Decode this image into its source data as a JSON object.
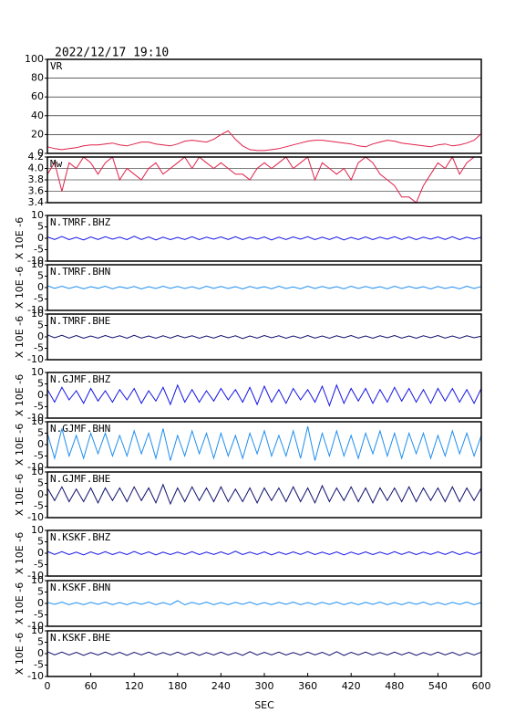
{
  "chart_data": {
    "title": "2022/12/17  19:10",
    "xlabel": "SEC",
    "xlim": [
      0,
      600
    ],
    "xticks": [
      0,
      60,
      120,
      180,
      240,
      300,
      360,
      420,
      480,
      540,
      600
    ],
    "x": [
      0,
      10,
      20,
      30,
      40,
      50,
      60,
      70,
      80,
      90,
      100,
      110,
      120,
      130,
      140,
      150,
      160,
      170,
      180,
      190,
      200,
      210,
      220,
      230,
      240,
      250,
      260,
      270,
      280,
      290,
      300,
      310,
      320,
      330,
      340,
      350,
      360,
      370,
      380,
      390,
      400,
      410,
      420,
      430,
      440,
      450,
      460,
      470,
      480,
      490,
      500,
      510,
      520,
      530,
      540,
      550,
      560,
      570,
      580,
      590,
      600
    ],
    "panels": [
      {
        "type": "line",
        "label": "VR",
        "color": "#e0204a",
        "ylim": [
          0,
          100
        ],
        "yticks": [
          0,
          20,
          40,
          60,
          80,
          100
        ],
        "grid": true,
        "values": [
          7,
          5,
          4,
          5,
          6,
          8,
          9,
          9,
          10,
          11,
          9,
          8,
          10,
          12,
          12,
          10,
          9,
          8,
          10,
          13,
          14,
          13,
          12,
          15,
          20,
          24,
          15,
          8,
          4,
          3,
          3,
          4,
          5,
          7,
          9,
          11,
          13,
          14,
          14,
          13,
          12,
          11,
          10,
          8,
          7,
          10,
          12,
          14,
          13,
          11,
          10,
          9,
          8,
          7,
          9,
          10,
          8,
          9,
          11,
          14,
          21
        ]
      },
      {
        "type": "line",
        "label": "Mw",
        "color": "#e0204a",
        "ylim": [
          3.4,
          4.2
        ],
        "yticks": [
          3.4,
          3.6,
          3.8,
          {
            "value": 4,
            "label": "4.0"
          },
          4.2
        ],
        "grid": true,
        "values": [
          3.9,
          4.1,
          3.6,
          4.1,
          4.0,
          4.2,
          4.1,
          3.9,
          4.1,
          4.2,
          3.8,
          4.0,
          3.9,
          3.8,
          4.0,
          4.1,
          3.9,
          4.0,
          4.1,
          4.2,
          4.0,
          4.2,
          4.1,
          4.0,
          4.1,
          4.0,
          3.9,
          3.9,
          3.8,
          4.0,
          4.1,
          4.0,
          4.1,
          4.2,
          4.0,
          4.1,
          4.2,
          3.8,
          4.1,
          4.0,
          3.9,
          4.0,
          3.8,
          4.1,
          4.2,
          4.1,
          3.9,
          3.8,
          3.7,
          3.5,
          3.5,
          3.4,
          3.7,
          3.9,
          4.1,
          4.0,
          4.2,
          3.9,
          4.1,
          4.2,
          4.2
        ]
      },
      {
        "type": "line",
        "label": "N.TMRF.BHZ",
        "ylabel": "X 10E -6",
        "color": "#1414e6",
        "ylim": [
          -10,
          10
        ],
        "yticks": [
          -10,
          -5,
          0,
          5,
          10
        ],
        "grid": false,
        "values": [
          0.6,
          -0.5,
          0.8,
          -0.6,
          0.4,
          -0.7,
          0.6,
          -0.5,
          0.7,
          -0.4,
          0.5,
          -0.6,
          0.9,
          -0.5,
          0.6,
          -0.7,
          0.5,
          -0.6,
          0.4,
          -0.5,
          0.7,
          -0.6,
          0.5,
          -0.4,
          0.6,
          -0.5,
          0.7,
          -0.6,
          0.5,
          -0.4,
          0.6,
          -0.7,
          0.5,
          -0.5,
          0.6,
          -0.4,
          0.7,
          -0.6,
          0.5,
          -0.5,
          0.6,
          -0.7,
          0.4,
          -0.5,
          0.6,
          -0.6,
          0.5,
          -0.4,
          0.7,
          -0.5,
          0.6,
          -0.6,
          0.5,
          -0.4,
          0.6,
          -0.5,
          0.7,
          -0.6,
          0.5,
          -0.4,
          0.5
        ]
      },
      {
        "type": "line",
        "label": "N.TMRF.BHN",
        "ylabel": "X 10E -6",
        "color": "#1e8ef0",
        "ylim": [
          -10,
          10
        ],
        "yticks": [
          -10,
          -5,
          0,
          5,
          10
        ],
        "grid": false,
        "values": [
          0.8,
          -0.3,
          0.6,
          -0.4,
          0.5,
          -0.5,
          0.4,
          -0.3,
          0.6,
          -0.5,
          0.4,
          -0.3,
          0.5,
          -0.6,
          0.4,
          -0.4,
          0.6,
          -0.3,
          0.5,
          -0.4,
          0.4,
          -0.5,
          0.6,
          -0.3,
          0.5,
          -0.4,
          0.4,
          -0.6,
          0.5,
          -0.3,
          0.4,
          -0.5,
          0.6,
          -0.4,
          0.3,
          -0.5,
          0.6,
          -0.4,
          0.5,
          -0.3,
          0.4,
          -0.5,
          0.6,
          -0.4,
          0.5,
          -0.3,
          0.4,
          -0.5,
          0.6,
          -0.4,
          0.5,
          -0.3,
          0.4,
          -0.6,
          0.5,
          -0.4,
          0.3,
          -0.5,
          0.6,
          -0.4,
          0.5
        ]
      },
      {
        "type": "line",
        "label": "N.TMRF.BHE",
        "ylabel": "X 10E -6",
        "color": "#10106e",
        "ylim": [
          -10,
          10
        ],
        "yticks": [
          -10,
          -5,
          0,
          5,
          10
        ],
        "grid": false,
        "values": [
          0.9,
          -0.4,
          0.7,
          -0.5,
          0.6,
          -0.6,
          0.4,
          -0.5,
          0.6,
          -0.4,
          0.5,
          -0.6,
          0.7,
          -0.5,
          0.4,
          -0.6,
          0.5,
          -0.5,
          0.6,
          -0.4,
          0.5,
          -0.6,
          0.4,
          -0.5,
          0.6,
          -0.4,
          0.5,
          -0.7,
          0.4,
          -0.5,
          0.6,
          -0.4,
          0.5,
          -0.6,
          0.4,
          -0.5,
          0.6,
          -0.5,
          0.4,
          -0.6,
          0.5,
          -0.4,
          0.6,
          -0.5,
          0.4,
          -0.6,
          0.5,
          -0.4,
          0.6,
          -0.5,
          0.4,
          -0.6,
          0.5,
          -0.4,
          0.6,
          -0.5,
          0.4,
          -0.6,
          0.5,
          -0.4,
          0.3
        ]
      },
      {
        "type": "line",
        "label": "N.GJMF.BHZ",
        "ylabel": "X 10E -6",
        "color": "#1414e6",
        "ylim": [
          -10,
          10
        ],
        "yticks": [
          -10,
          -5,
          0,
          5,
          10
        ],
        "grid": false,
        "values": [
          2.5,
          -3,
          3.5,
          -2,
          2,
          -3.5,
          3,
          -2.5,
          2,
          -3,
          2.5,
          -2,
          3,
          -3.5,
          2,
          -2.5,
          3.5,
          -4,
          4.5,
          -3,
          2.5,
          -3,
          2,
          -2.5,
          3,
          -2,
          2.5,
          -3,
          3.5,
          -4,
          4,
          -3,
          2.5,
          -3.5,
          3,
          -2,
          2.5,
          -3,
          4,
          -4.5,
          4.5,
          -3.5,
          3,
          -2.5,
          3,
          -3.5,
          2.5,
          -3,
          3.5,
          -2.5,
          3,
          -3,
          2.5,
          -3.5,
          3,
          -2.5,
          3,
          -3,
          2.5,
          -3.5,
          3
        ]
      },
      {
        "type": "line",
        "label": "N.GJMF.BHN",
        "ylabel": "X 10E -6",
        "color": "#1e8ef0",
        "ylim": [
          -10,
          10
        ],
        "yticks": [
          -10,
          -5,
          0,
          5,
          10
        ],
        "grid": false,
        "values": [
          5,
          -6,
          7,
          -5,
          4,
          -6,
          5,
          -4,
          5,
          -5,
          4,
          -5,
          6,
          -4,
          5,
          -6,
          7,
          -7,
          4,
          -5,
          6,
          -4,
          5,
          -6,
          5,
          -5,
          4,
          -6,
          5,
          -4,
          6,
          -5,
          4,
          -5,
          6,
          -6,
          8,
          -7,
          5,
          -5,
          6,
          -5,
          4,
          -6,
          5,
          -4,
          6,
          -5,
          5,
          -6,
          5,
          -4,
          5,
          -6,
          4,
          -5,
          6,
          -4,
          5,
          -5,
          4
        ]
      },
      {
        "type": "line",
        "label": "N.GJMF.BHE",
        "ylabel": "X 10E -6",
        "color": "#10106e",
        "ylim": [
          -10,
          10
        ],
        "yticks": [
          -10,
          -5,
          0,
          5,
          10
        ],
        "grid": false,
        "values": [
          3,
          -2.5,
          3.5,
          -3,
          2.5,
          -3,
          3,
          -3.5,
          3,
          -2.5,
          3,
          -3,
          3.5,
          -2.5,
          3,
          -3.5,
          4.5,
          -4,
          3,
          -3,
          3.5,
          -2.5,
          3,
          -3,
          3.5,
          -3,
          2.5,
          -3,
          3,
          -3.5,
          3,
          -2.5,
          3,
          -3,
          3.5,
          -3,
          3,
          -3.5,
          4,
          -3,
          3,
          -2.5,
          3.5,
          -3,
          3,
          -3.5,
          3,
          -2.5,
          3,
          -3,
          3.5,
          -3,
          3,
          -2.5,
          3,
          -3,
          3.5,
          -3,
          3,
          -2.5,
          3
        ]
      },
      {
        "type": "line",
        "label": "N.KSKF.BHZ",
        "ylabel": "X 10E -6",
        "color": "#1414e6",
        "ylim": [
          -10,
          10
        ],
        "yticks": [
          -10,
          -5,
          0,
          5,
          10
        ],
        "grid": false,
        "values": [
          0.8,
          -0.5,
          0.7,
          -0.6,
          0.5,
          -0.7,
          0.6,
          -0.5,
          0.7,
          -0.6,
          0.5,
          -0.6,
          0.8,
          -0.5,
          0.6,
          -0.7,
          0.5,
          -0.6,
          0.5,
          -0.5,
          0.7,
          -0.6,
          0.5,
          -0.5,
          0.6,
          -0.5,
          0.9,
          -0.6,
          0.5,
          -0.5,
          0.6,
          -0.7,
          0.5,
          -0.5,
          0.6,
          -0.5,
          0.7,
          -0.6,
          0.5,
          -0.5,
          0.6,
          -0.7,
          0.5,
          -0.5,
          0.6,
          -0.6,
          0.5,
          -0.5,
          0.7,
          -0.5,
          0.6,
          -0.6,
          0.5,
          -0.5,
          0.6,
          -0.5,
          0.7,
          -0.6,
          0.5,
          -0.5,
          0.6
        ]
      },
      {
        "type": "line",
        "label": "N.KSKF.BHN",
        "ylabel": "X 10E -6",
        "color": "#1e8ef0",
        "ylim": [
          -10,
          10
        ],
        "yticks": [
          -10,
          -5,
          0,
          5,
          10
        ],
        "grid": false,
        "values": [
          0.5,
          -0.4,
          0.6,
          -0.5,
          0.4,
          -0.5,
          0.5,
          -0.4,
          0.6,
          -0.5,
          0.4,
          -0.5,
          0.5,
          -0.4,
          0.6,
          -0.5,
          0.4,
          -0.5,
          1.2,
          -0.6,
          0.5,
          -0.4,
          0.6,
          -0.5,
          0.4,
          -0.5,
          0.5,
          -0.4,
          0.6,
          -0.5,
          0.4,
          -0.5,
          0.5,
          -0.4,
          0.6,
          -0.5,
          0.4,
          -0.5,
          0.5,
          -0.4,
          0.6,
          -0.5,
          0.4,
          -0.5,
          0.5,
          -0.4,
          0.6,
          -0.5,
          0.4,
          -0.5,
          0.5,
          -0.4,
          0.6,
          -0.5,
          0.4,
          -0.5,
          0.5,
          -0.4,
          0.6,
          -0.5,
          0.4
        ]
      },
      {
        "type": "line",
        "label": "N.KSKF.BHE",
        "ylabel": "X 10E -6",
        "color": "#10106e",
        "ylim": [
          -10,
          10
        ],
        "yticks": [
          -10,
          -5,
          0,
          5,
          10
        ],
        "grid": false,
        "values": [
          0.9,
          -0.5,
          0.7,
          -0.6,
          0.6,
          -0.7,
          0.5,
          -0.6,
          0.7,
          -0.5,
          0.6,
          -0.7,
          0.6,
          -0.5,
          0.7,
          -0.6,
          0.5,
          -0.6,
          0.7,
          -0.5,
          0.6,
          -0.7,
          0.5,
          -0.6,
          0.7,
          -0.6,
          0.5,
          -0.7,
          0.9,
          -0.6,
          0.6,
          -0.5,
          0.7,
          -0.6,
          0.5,
          -0.6,
          0.7,
          -0.5,
          0.6,
          -0.7,
          0.9,
          -0.8,
          0.6,
          -0.5,
          0.7,
          -0.6,
          0.5,
          -0.6,
          0.7,
          -0.5,
          0.6,
          -0.7,
          0.5,
          -0.6,
          0.7,
          -0.5,
          0.6,
          -0.7,
          0.5,
          -0.6,
          0.7
        ]
      }
    ]
  }
}
